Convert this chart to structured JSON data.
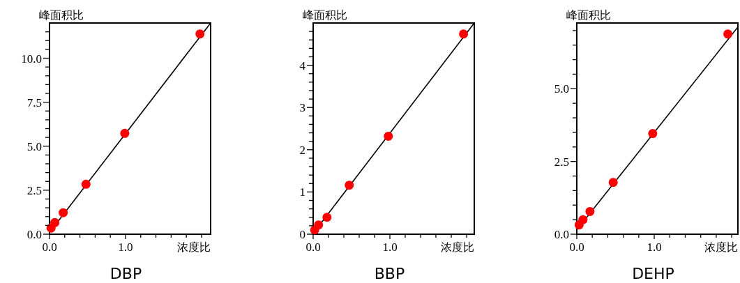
{
  "chart_data": [
    {
      "type": "scatter",
      "title": "DBP",
      "xlabel": "浓度比",
      "ylabel": "峰面积比",
      "xlim": [
        0,
        2.12
      ],
      "ylim": [
        0,
        12
      ],
      "xticks": [
        {
          "value": 0,
          "label": "0.0"
        },
        {
          "value": 0.2,
          "label": null
        },
        {
          "value": 0.4,
          "label": null
        },
        {
          "value": 0.6,
          "label": null
        },
        {
          "value": 0.8,
          "label": null
        },
        {
          "value": 1,
          "label": "1.0"
        },
        {
          "value": 1.2,
          "label": null
        },
        {
          "value": 1.4,
          "label": null
        },
        {
          "value": 1.6,
          "label": null
        },
        {
          "value": 1.8,
          "label": null
        },
        {
          "value": 2,
          "label": null
        }
      ],
      "yticks": [
        {
          "value": 0,
          "label": "0.0"
        },
        {
          "value": 0.5,
          "label": null
        },
        {
          "value": 1,
          "label": null
        },
        {
          "value": 1.5,
          "label": null
        },
        {
          "value": 2,
          "label": null
        },
        {
          "value": 2.5,
          "label": "2.5"
        },
        {
          "value": 3,
          "label": null
        },
        {
          "value": 3.5,
          "label": null
        },
        {
          "value": 4,
          "label": null
        },
        {
          "value": 4.5,
          "label": null
        },
        {
          "value": 5,
          "label": "5.0"
        },
        {
          "value": 5.5,
          "label": null
        },
        {
          "value": 6,
          "label": null
        },
        {
          "value": 6.5,
          "label": null
        },
        {
          "value": 7,
          "label": null
        },
        {
          "value": 7.5,
          "label": "7.5"
        },
        {
          "value": 8,
          "label": null
        },
        {
          "value": 8.5,
          "label": null
        },
        {
          "value": 9,
          "label": null
        },
        {
          "value": 9.5,
          "label": null
        },
        {
          "value": 10,
          "label": "10.0"
        },
        {
          "value": 10.5,
          "label": null
        },
        {
          "value": 11,
          "label": null
        },
        {
          "value": 11.5,
          "label": null
        }
      ],
      "series": [
        {
          "type": "line",
          "color": "#000000",
          "x": [
            0,
            2.12
          ],
          "values": [
            0.1,
            12
          ]
        },
        {
          "marker": "circle",
          "color": "#ff0000",
          "x": [
            0.02,
            0.07,
            0.18,
            0.48,
            0.99,
            1.98
          ],
          "values": [
            0.35,
            0.66,
            1.22,
            2.84,
            5.73,
            11.38
          ]
        }
      ]
    },
    {
      "type": "scatter",
      "title": "BBP",
      "xlabel": "浓度比",
      "ylabel": "峰面积比",
      "xlim": [
        0,
        2.1
      ],
      "ylim": [
        0,
        5
      ],
      "xticks": [
        {
          "value": 0,
          "label": "0.0"
        },
        {
          "value": 0.2,
          "label": null
        },
        {
          "value": 0.4,
          "label": null
        },
        {
          "value": 0.6,
          "label": null
        },
        {
          "value": 0.8,
          "label": null
        },
        {
          "value": 1,
          "label": "1.0"
        },
        {
          "value": 1.2,
          "label": null
        },
        {
          "value": 1.4,
          "label": null
        },
        {
          "value": 1.6,
          "label": null
        },
        {
          "value": 1.8,
          "label": null
        },
        {
          "value": 2,
          "label": null
        }
      ],
      "yticks": [
        0,
        {
          "value": 0.2,
          "label": null
        },
        {
          "value": 0.4,
          "label": null
        },
        {
          "value": 0.6,
          "label": null
        },
        {
          "value": 0.8,
          "label": null
        },
        1,
        {
          "value": 1.2,
          "label": null
        },
        {
          "value": 1.4,
          "label": null
        },
        {
          "value": 1.6,
          "label": null
        },
        {
          "value": 1.8,
          "label": null
        },
        2,
        {
          "value": 2.2,
          "label": null
        },
        {
          "value": 2.4,
          "label": null
        },
        {
          "value": 2.6,
          "label": null
        },
        {
          "value": 2.8,
          "label": null
        },
        3,
        {
          "value": 3.2,
          "label": null
        },
        {
          "value": 3.4,
          "label": null
        },
        {
          "value": 3.6,
          "label": null
        },
        {
          "value": 3.8,
          "label": null
        },
        4,
        {
          "value": 4.2,
          "label": null
        },
        {
          "value": 4.4,
          "label": null
        },
        {
          "value": 4.6,
          "label": null
        },
        {
          "value": 4.8,
          "label": null
        }
      ],
      "series": [
        {
          "type": "line",
          "color": "#000000",
          "x": [
            0,
            2.1
          ],
          "values": [
            0.02,
            5
          ]
        },
        {
          "marker": "circle",
          "color": "#ff0000",
          "x": [
            0.02,
            0.07,
            0.18,
            0.47,
            0.98,
            1.96
          ],
          "values": [
            0.1,
            0.22,
            0.4,
            1.16,
            2.32,
            4.74
          ]
        }
      ]
    },
    {
      "type": "scatter",
      "title": "DEHP",
      "xlabel": "浓度比",
      "ylabel": "峰面积比",
      "xlim": [
        0,
        2.08
      ],
      "ylim": [
        0,
        7.26
      ],
      "xticks": [
        {
          "value": 0,
          "label": "0.0"
        },
        {
          "value": 0.2,
          "label": null
        },
        {
          "value": 0.4,
          "label": null
        },
        {
          "value": 0.6,
          "label": null
        },
        {
          "value": 0.8,
          "label": null
        },
        {
          "value": 1,
          "label": "1.0"
        },
        {
          "value": 1.2,
          "label": null
        },
        {
          "value": 1.4,
          "label": null
        },
        {
          "value": 1.6,
          "label": null
        },
        {
          "value": 1.8,
          "label": null
        },
        {
          "value": 2,
          "label": null
        }
      ],
      "yticks": [
        {
          "value": 0,
          "label": "0.0"
        },
        {
          "value": 0.5,
          "label": null
        },
        {
          "value": 1,
          "label": null
        },
        {
          "value": 1.5,
          "label": null
        },
        {
          "value": 2,
          "label": null
        },
        {
          "value": 2.5,
          "label": "2.5"
        },
        {
          "value": 3,
          "label": null
        },
        {
          "value": 3.5,
          "label": null
        },
        {
          "value": 4,
          "label": null
        },
        {
          "value": 4.5,
          "label": null
        },
        {
          "value": 5,
          "label": "5.0"
        },
        {
          "value": 5.5,
          "label": null
        },
        {
          "value": 6,
          "label": null
        },
        {
          "value": 6.5,
          "label": null
        },
        {
          "value": 7,
          "label": null
        }
      ],
      "series": [
        {
          "type": "line",
          "color": "#000000",
          "x": [
            0,
            2.08
          ],
          "values": [
            0.15,
            7.12
          ]
        },
        {
          "marker": "circle",
          "color": "#ff0000",
          "x": [
            0.03,
            0.08,
            0.17,
            0.47,
            0.98,
            1.95
          ],
          "values": [
            0.32,
            0.5,
            0.78,
            1.78,
            3.46,
            6.88
          ]
        }
      ]
    }
  ]
}
